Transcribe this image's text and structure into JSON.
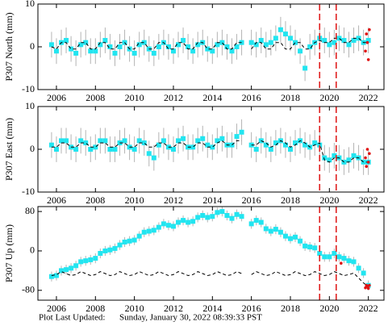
{
  "chart_data": [
    {
      "type": "scatter",
      "ylabel": "P307 North (mm)",
      "xlim": [
        2005.05,
        2022.8
      ],
      "xticks": [
        2006,
        2008,
        2010,
        2012,
        2014,
        2016,
        2018,
        2020,
        2022
      ],
      "ylim": [
        -10,
        10
      ],
      "yticks": [
        -10,
        0,
        10
      ],
      "vlines": [
        2019.5,
        2020.35
      ],
      "vline_color": "#e02020",
      "x": [
        2005.75,
        2006,
        2006.25,
        2006.5,
        2006.75,
        2007,
        2007.25,
        2007.5,
        2007.75,
        2008,
        2008.25,
        2008.5,
        2008.75,
        2009,
        2009.25,
        2009.5,
        2009.75,
        2010,
        2010.25,
        2010.5,
        2010.75,
        2011,
        2011.25,
        2011.5,
        2011.75,
        2012,
        2012.25,
        2012.5,
        2012.75,
        2013,
        2013.25,
        2013.5,
        2013.75,
        2014,
        2014.25,
        2014.5,
        2014.75,
        2015,
        2015.25,
        2015.5,
        2015.75,
        2016,
        2016.25,
        2016.5,
        2016.75,
        2017,
        2017.25,
        2017.5,
        2017.75,
        2018,
        2018.25,
        2018.5,
        2018.75,
        2019,
        2019.25,
        2019.5,
        2019.75,
        2020,
        2020.25,
        2020.5,
        2020.75,
        2021,
        2021.25,
        2021.5,
        2021.75,
        2022
      ],
      "series": [
        {
          "color": "#22e5f0",
          "error": 3,
          "error_color": "#b4b4b4",
          "values": [
            0.5,
            -1,
            1,
            1.5,
            -0.5,
            -1.5,
            0.5,
            1,
            -1,
            -1,
            0.5,
            1.5,
            0,
            -1.5,
            0,
            1,
            -0.5,
            -1.5,
            0.5,
            1,
            -0.5,
            -1.5,
            0,
            1,
            0,
            -1,
            0.5,
            1.5,
            0,
            -1,
            0.5,
            1,
            -0.5,
            -1,
            0.5,
            1,
            0,
            -1,
            0,
            1,
            null,
            1,
            0.5,
            1.5,
            0.5,
            1,
            2,
            4,
            3,
            2,
            1,
            -1,
            -5,
            0,
            1,
            2,
            1.5,
            0.5,
            1,
            2,
            1.5,
            0.5,
            1.5,
            2,
            1,
            1.5
          ]
        },
        {
          "color": "#000000",
          "dashed": true,
          "values": [
            0,
            -0.5,
            1,
            1,
            -0.5,
            -0.5,
            1,
            1,
            -0.5,
            -0.5,
            1,
            1,
            -0.5,
            -0.5,
            1,
            1,
            -0.5,
            -0.5,
            1,
            1,
            -0.5,
            -0.5,
            1,
            1,
            -0.5,
            -0.5,
            1,
            1,
            -0.5,
            -0.5,
            1,
            1,
            -0.5,
            -0.5,
            1,
            1,
            -0.5,
            -0.5,
            1,
            1,
            null,
            -0.5,
            1,
            1,
            -0.5,
            -0.5,
            1,
            1,
            -0.5,
            -0.5,
            1,
            1,
            -0.5,
            -0.5,
            1,
            1.5,
            1,
            1,
            2,
            2,
            1,
            1,
            2,
            2,
            1,
            1
          ]
        }
      ],
      "red": {
        "color": "#e01010",
        "x": [
          2021.85,
          2021.9,
          2021.95,
          2022,
          2022.05
        ],
        "values": [
          -1,
          3,
          1,
          -3,
          4
        ]
      }
    },
    {
      "type": "scatter",
      "ylabel": "P307 East (mm)",
      "xlim": [
        2005.05,
        2022.8
      ],
      "xticks": [
        2006,
        2008,
        2010,
        2012,
        2014,
        2016,
        2018,
        2020,
        2022
      ],
      "ylim": [
        -10,
        10
      ],
      "yticks": [
        -10,
        0,
        10
      ],
      "vlines": [
        2019.5,
        2020.35
      ],
      "vline_color": "#e02020",
      "x": [
        2005.75,
        2006,
        2006.25,
        2006.5,
        2006.75,
        2007,
        2007.25,
        2007.5,
        2007.75,
        2008,
        2008.25,
        2008.5,
        2008.75,
        2009,
        2009.25,
        2009.5,
        2009.75,
        2010,
        2010.25,
        2010.5,
        2010.75,
        2011,
        2011.25,
        2011.5,
        2011.75,
        2012,
        2012.25,
        2012.5,
        2012.75,
        2013,
        2013.25,
        2013.5,
        2013.75,
        2014,
        2014.25,
        2014.5,
        2014.75,
        2015,
        2015.25,
        2015.5,
        2015.75,
        2016,
        2016.25,
        2016.5,
        2016.75,
        2017,
        2017.25,
        2017.5,
        2017.75,
        2018,
        2018.25,
        2018.5,
        2018.75,
        2019,
        2019.25,
        2019.5,
        2019.75,
        2020,
        2020.25,
        2020.5,
        2020.75,
        2021,
        2021.25,
        2021.5,
        2021.75,
        2022
      ],
      "series": [
        {
          "color": "#22e5f0",
          "error": 3,
          "error_color": "#b4b4b4",
          "values": [
            1,
            0,
            2,
            2,
            0.5,
            0,
            2,
            1.5,
            0,
            0.5,
            2,
            2,
            0,
            0,
            1.5,
            2,
            0.5,
            0,
            2,
            1.5,
            -1,
            -2,
            1,
            2,
            0.5,
            0,
            2,
            2.5,
            0.5,
            0.5,
            2,
            2.5,
            1,
            0.5,
            2,
            2.5,
            1,
            1,
            3,
            4,
            null,
            1,
            0,
            2,
            1,
            0,
            1.5,
            2,
            1,
            0,
            1.5,
            2,
            1,
            0.5,
            1.5,
            1,
            -2,
            -2.5,
            -1.5,
            -2,
            -3,
            -2.5,
            -1.5,
            -2,
            -3,
            -3
          ]
        },
        {
          "color": "#000000",
          "dashed": true,
          "values": [
            0.5,
            0.5,
            1.5,
            1.5,
            0.5,
            0.5,
            1.5,
            1.5,
            0.5,
            0.5,
            1.5,
            1.5,
            0.5,
            0.5,
            1.5,
            1.5,
            0.5,
            0.5,
            1.5,
            1.5,
            0.5,
            0.5,
            1.5,
            1.5,
            0.5,
            0.5,
            1.5,
            1.5,
            0.5,
            0.5,
            1.5,
            1.5,
            0.5,
            0.5,
            1.5,
            2,
            1,
            1,
            2,
            2,
            null,
            1,
            1,
            2,
            1.5,
            0.5,
            1,
            2,
            1.5,
            0.5,
            1,
            2,
            1.5,
            0.5,
            1,
            1.5,
            -2.5,
            -3,
            -2,
            -2,
            -3,
            -3,
            -2,
            -2,
            -3,
            -3
          ]
        }
      ],
      "red": {
        "color": "#e01010",
        "x": [
          2021.85,
          2021.9,
          2021.95,
          2022,
          2022.05
        ],
        "values": [
          -2,
          -4,
          0,
          -3,
          -1
        ]
      }
    },
    {
      "type": "scatter",
      "ylabel": "P307 Up (mm)",
      "xlim": [
        2005.05,
        2022.8
      ],
      "xticks": [
        2006,
        2008,
        2010,
        2012,
        2014,
        2016,
        2018,
        2020,
        2022
      ],
      "ylim": [
        -100,
        90
      ],
      "yticks": [
        -80,
        0,
        80
      ],
      "vlines": [
        2019.5,
        2020.35
      ],
      "vline_color": "#e02020",
      "x": [
        2005.75,
        2006,
        2006.25,
        2006.5,
        2006.75,
        2007,
        2007.25,
        2007.5,
        2007.75,
        2008,
        2008.25,
        2008.5,
        2008.75,
        2009,
        2009.25,
        2009.5,
        2009.75,
        2010,
        2010.25,
        2010.5,
        2010.75,
        2011,
        2011.25,
        2011.5,
        2011.75,
        2012,
        2012.25,
        2012.5,
        2012.75,
        2013,
        2013.25,
        2013.5,
        2013.75,
        2014,
        2014.25,
        2014.5,
        2014.75,
        2015,
        2015.25,
        2015.5,
        2015.75,
        2016,
        2016.25,
        2016.5,
        2016.75,
        2017,
        2017.25,
        2017.5,
        2017.75,
        2018,
        2018.25,
        2018.5,
        2018.75,
        2019,
        2019.25,
        2019.5,
        2019.75,
        2020,
        2020.25,
        2020.5,
        2020.75,
        2021,
        2021.25,
        2021.5,
        2021.75,
        2022
      ],
      "series": [
        {
          "color": "#22e5f0",
          "error": 10,
          "error_color": "#b4b4b4",
          "values": [
            -52,
            -50,
            -40,
            -38,
            -35,
            -30,
            -22,
            -20,
            -18,
            -15,
            -5,
            0,
            2,
            5,
            12,
            18,
            20,
            22,
            30,
            38,
            40,
            42,
            48,
            55,
            52,
            50,
            58,
            62,
            58,
            60,
            68,
            72,
            68,
            70,
            78,
            80,
            72,
            66,
            74,
            70,
            null,
            55,
            62,
            58,
            45,
            40,
            44,
            38,
            30,
            25,
            28,
            20,
            10,
            8,
            6,
            -5,
            -12,
            -12,
            -5,
            -12,
            -15,
            -20,
            -22,
            -35,
            -45,
            -70
          ]
        },
        {
          "color": "#000000",
          "dashed": true,
          "values": [
            -50,
            -48,
            -42,
            -46,
            -50,
            -48,
            -42,
            -46,
            -50,
            -48,
            -42,
            -46,
            -50,
            -48,
            -42,
            -46,
            -50,
            -48,
            -42,
            -46,
            -50,
            -48,
            -42,
            -46,
            -50,
            -48,
            -42,
            -46,
            -50,
            -48,
            -42,
            -46,
            -50,
            -48,
            -42,
            -46,
            -50,
            -48,
            -42,
            -46,
            null,
            -48,
            -42,
            -46,
            -50,
            -48,
            -42,
            -46,
            -50,
            -48,
            -42,
            -46,
            -50,
            -48,
            -42,
            -46,
            -50,
            -48,
            -42,
            -46,
            -50,
            -48,
            -45,
            -55,
            -65,
            -72
          ]
        }
      ],
      "red": {
        "color": "#e01010",
        "x": [
          2020.6,
          2021.85,
          2021.9,
          2021.95,
          2022,
          2022.05
        ],
        "values": [
          -25,
          -75,
          -70,
          -72,
          -76,
          -70
        ]
      }
    }
  ],
  "footer": {
    "label": "Plot Last Updated:",
    "date": "Sunday, January 30, 2022 08:39:33 PST"
  }
}
